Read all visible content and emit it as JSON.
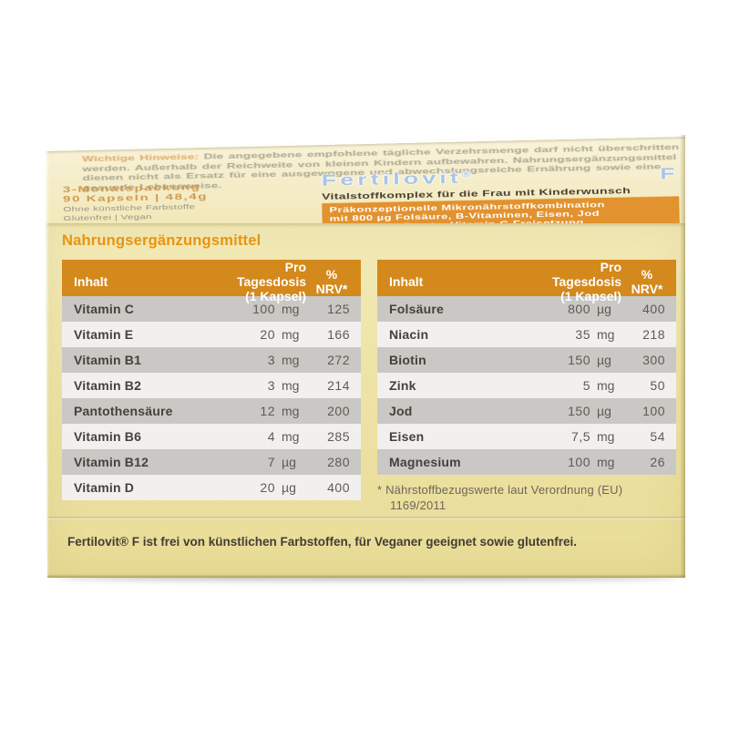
{
  "product": {
    "brand_name": "Fertilovit",
    "brand_reg": "®",
    "brand_suffix": "F",
    "subtitle": "Vitalstoffkomplex für die Frau mit Kinderwunsch",
    "claim_lines": [
      "Präkonzeptionelle Mikronährstoffkombination",
      "mit 800 µg Folsäure, B-Vitaminen, Eisen, Jod",
      "und zeitverzögerter Vitamin C-Freisetzung"
    ],
    "pack": {
      "line1": "3-Monatspackung",
      "line2": "90 Kapseln | 48,4g",
      "line3": "Ohne künstliche Farbstoffe",
      "line4": "Glutenfrei | Vegan"
    },
    "notice": {
      "title": "Wichtige Hinweise:",
      "body": "Die angegebene empfohlene tägliche Verzehrsmenge darf nicht überschritten werden. Außerhalb der Reichweite von kleinen Kindern aufbewahren. Nahrungsergänzungsmittel dienen nicht als Ersatz für eine ausgewogene und abwechslungsreiche Ernährung sowie eine gesunde Lebensweise."
    }
  },
  "section_title": "Nahrungsergänzungsmittel",
  "tables": {
    "headers": {
      "col1": "Inhalt",
      "col2_line1": "Pro Tagesdosis",
      "col2_line2": "(1 Kapsel)",
      "col3_line1": "%",
      "col3_line2": "NRV*"
    },
    "left": {
      "rows": [
        {
          "name": "Vitamin C",
          "value": "100",
          "unit": "mg",
          "nrv": "125"
        },
        {
          "name": "Vitamin E",
          "value": "20",
          "unit": "mg",
          "nrv": "166"
        },
        {
          "name": "Vitamin B1",
          "value": "3",
          "unit": "mg",
          "nrv": "272"
        },
        {
          "name": "Vitamin B2",
          "value": "3",
          "unit": "mg",
          "nrv": "214"
        },
        {
          "name": "Pantothensäure",
          "value": "12",
          "unit": "mg",
          "nrv": "200"
        },
        {
          "name": "Vitamin B6",
          "value": "4",
          "unit": "mg",
          "nrv": "285"
        },
        {
          "name": "Vitamin B12",
          "value": "7",
          "unit": "µg",
          "nrv": "280"
        },
        {
          "name": "Vitamin D",
          "value": "20",
          "unit": "µg",
          "nrv": "400"
        }
      ]
    },
    "right": {
      "rows": [
        {
          "name": "Folsäure",
          "value": "800",
          "unit": "µg",
          "nrv": "400"
        },
        {
          "name": "Niacin",
          "value": "35",
          "unit": "mg",
          "nrv": "218"
        },
        {
          "name": "Biotin",
          "value": "150",
          "unit": "µg",
          "nrv": "300"
        },
        {
          "name": "Zink",
          "value": "5",
          "unit": "mg",
          "nrv": "50"
        },
        {
          "name": "Jod",
          "value": "150",
          "unit": "µg",
          "nrv": "100"
        },
        {
          "name": "Eisen",
          "value": "7,5",
          "unit": "mg",
          "nrv": "54"
        },
        {
          "name": "Magnesium",
          "value": "100",
          "unit": "mg",
          "nrv": "26"
        }
      ]
    }
  },
  "footnote": {
    "line1": "* Nährstoffbezugswerte laut Verordnung (EU)",
    "line2": "1169/2011"
  },
  "banner": "Fertilovit® F ist frei von künstlichen Farbstoffen, für Veganer geeignet sowie glutenfrei.",
  "colors": {
    "box_cream": "#eee3a6",
    "flap_cream": "#f5edc9",
    "header_orange": "#d4891c",
    "claim_orange": "#e2922e",
    "heading_orange": "#e8940e",
    "logo_blue": "#a9c5e5",
    "row_dark": "#c9c8c5",
    "row_light": "#f1f0ee"
  }
}
